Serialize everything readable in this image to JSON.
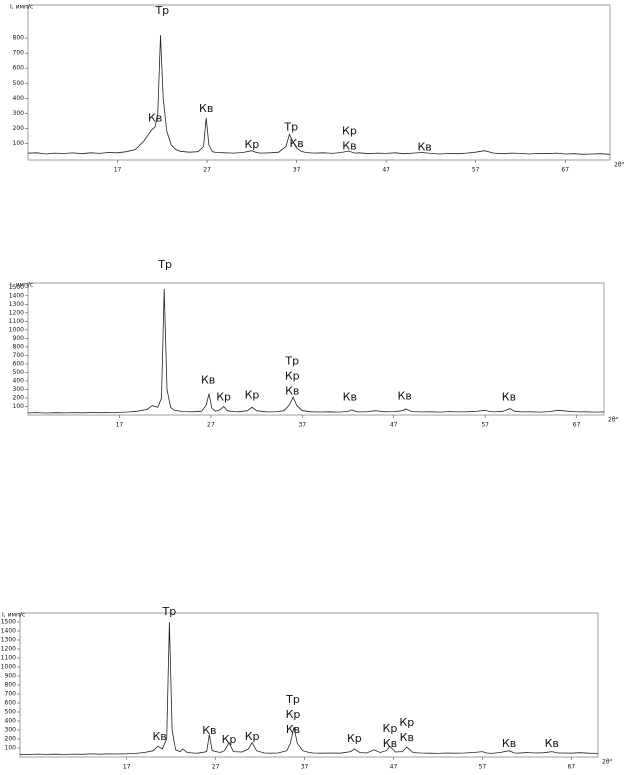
{
  "chart_data": [
    {
      "type": "line",
      "y_label": "I, имп/с",
      "x_label": "2θ°",
      "xlim": [
        7,
        72
      ],
      "ylim": [
        -10,
        1020
      ],
      "xticks": [
        17,
        27,
        37,
        47,
        57,
        67
      ],
      "yticks": [
        100,
        200,
        300,
        400,
        500,
        600,
        700,
        800
      ],
      "series": [
        {
          "color": "#222222",
          "x": [
            7,
            8,
            9,
            10,
            11,
            12,
            13,
            14,
            15,
            16,
            17,
            18,
            19,
            20,
            20.8,
            21.2,
            21.5,
            21.8,
            22.1,
            22.5,
            23,
            23.5,
            24,
            25,
            26,
            26.6,
            26.9,
            27.2,
            27.6,
            28,
            29,
            30,
            31,
            32,
            32.5,
            33,
            34,
            35,
            35.8,
            36.2,
            36.6,
            37,
            37.5,
            38,
            39,
            40,
            41,
            42,
            42.8,
            43.5,
            44,
            45,
            46,
            47,
            48,
            49,
            50,
            51,
            52,
            53,
            54,
            55,
            56,
            57,
            58,
            59,
            60,
            61,
            62,
            63,
            64,
            65,
            66,
            67,
            68,
            69,
            70,
            71,
            72
          ],
          "values": [
            35,
            38,
            30,
            36,
            33,
            37,
            32,
            38,
            34,
            40,
            38,
            45,
            60,
            120,
            190,
            210,
            300,
            820,
            400,
            180,
            90,
            60,
            48,
            42,
            45,
            80,
            270,
            90,
            45,
            40,
            38,
            36,
            40,
            52,
            40,
            36,
            38,
            42,
            80,
            160,
            110,
            70,
            48,
            40,
            36,
            38,
            34,
            40,
            50,
            36,
            38,
            32,
            36,
            34,
            38,
            32,
            36,
            40,
            34,
            30,
            34,
            32,
            36,
            42,
            52,
            36,
            32,
            36,
            34,
            30,
            34,
            32,
            36,
            30,
            32,
            28,
            30,
            32,
            28
          ]
        }
      ],
      "annotations": [
        {
          "x": 22,
          "y": 980,
          "labels": [
            "Тр"
          ]
        },
        {
          "x": 21.2,
          "y": 265,
          "labels": [
            "Кв"
          ]
        },
        {
          "x": 26.9,
          "y": 330,
          "labels": [
            "Кв"
          ]
        },
        {
          "x": 32,
          "y": 90,
          "labels": [
            "Кр"
          ]
        },
        {
          "x": 36.4,
          "y": 205,
          "labels": [
            "Тр"
          ]
        },
        {
          "x": 37,
          "y": 95,
          "labels": [
            "Кв"
          ]
        },
        {
          "x": 42.9,
          "y": 80,
          "labels": [
            "Кр",
            "Кв"
          ]
        },
        {
          "x": 51.3,
          "y": 72,
          "labels": [
            "Кв"
          ]
        }
      ]
    },
    {
      "type": "line",
      "y_label": "I, имп/с",
      "x_label": "2θ°",
      "xlim": [
        7,
        70
      ],
      "ylim": [
        0,
        1550
      ],
      "xticks": [
        17,
        27,
        37,
        47,
        57,
        67
      ],
      "yticks": [
        100,
        200,
        300,
        400,
        500,
        600,
        700,
        800,
        900,
        1000,
        1100,
        1200,
        1300,
        1400,
        1500
      ],
      "series": [
        {
          "color": "#222222",
          "x": [
            7,
            8,
            9,
            10,
            11,
            12,
            13,
            14,
            15,
            16,
            17,
            18,
            19,
            20,
            20.6,
            21.2,
            21.6,
            21.9,
            22.2,
            22.6,
            23,
            24,
            25,
            26,
            26.5,
            26.8,
            27.1,
            27.5,
            28,
            28.4,
            28.8,
            29.5,
            30,
            31,
            31.5,
            32,
            33,
            34,
            35,
            35.6,
            36,
            36.4,
            37,
            38,
            39,
            40,
            41,
            42,
            42.4,
            43,
            44,
            45,
            46,
            47,
            48,
            48.3,
            49,
            50,
            51,
            52,
            53,
            54,
            55,
            56,
            57,
            57.5,
            58,
            59,
            59.7,
            60.2,
            61,
            62,
            63,
            64,
            65,
            66,
            67,
            68,
            69,
            70
          ],
          "values": [
            25,
            28,
            24,
            27,
            25,
            28,
            26,
            29,
            27,
            30,
            30,
            35,
            45,
            65,
            110,
            90,
            200,
            1480,
            300,
            90,
            55,
            40,
            38,
            45,
            120,
            250,
            80,
            45,
            60,
            100,
            50,
            40,
            38,
            50,
            90,
            50,
            38,
            36,
            50,
            120,
            210,
            110,
            50,
            38,
            35,
            38,
            34,
            42,
            60,
            38,
            36,
            50,
            38,
            40,
            50,
            70,
            40,
            36,
            38,
            34,
            40,
            36,
            38,
            42,
            55,
            40,
            36,
            45,
            75,
            45,
            36,
            38,
            34,
            40,
            55,
            45,
            36,
            38,
            34,
            36
          ]
        }
      ],
      "annotations": [
        {
          "x": 22,
          "y": 1760,
          "labels": [
            "Тр"
          ]
        },
        {
          "x": 26.7,
          "y": 406,
          "labels": [
            "Кв"
          ]
        },
        {
          "x": 28.4,
          "y": 206,
          "labels": [
            "Кр"
          ]
        },
        {
          "x": 31.5,
          "y": 229,
          "labels": [
            "Кр"
          ]
        },
        {
          "x": 35.9,
          "y": 276,
          "labels": [
            "Тр",
            "Кр",
            "Кв"
          ]
        },
        {
          "x": 42.2,
          "y": 206,
          "labels": [
            "Кв"
          ]
        },
        {
          "x": 48.2,
          "y": 218,
          "labels": [
            "Кв"
          ]
        },
        {
          "x": 59.6,
          "y": 206,
          "labels": [
            "Кв"
          ]
        }
      ]
    },
    {
      "type": "line",
      "y_label": "I, имп/с",
      "x_label": "2θ°",
      "xlim": [
        5,
        70
      ],
      "ylim": [
        0,
        1600
      ],
      "xticks": [
        17,
        27,
        37,
        47,
        57,
        67
      ],
      "yticks": [
        100,
        200,
        300,
        400,
        500,
        600,
        700,
        800,
        900,
        1000,
        1100,
        1200,
        1300,
        1400,
        1500
      ],
      "series": [
        {
          "color": "#222222",
          "x": [
            5,
            6,
            7,
            8,
            9,
            10,
            11,
            12,
            13,
            14,
            15,
            16,
            17,
            18,
            19,
            20,
            20.5,
            21,
            21.5,
            21.8,
            22.1,
            22.5,
            23,
            23.3,
            23.8,
            24.5,
            25,
            26,
            26.3,
            26.6,
            27.5,
            28,
            28.5,
            29,
            30,
            30.7,
            31.1,
            31.6,
            32.5,
            33,
            34,
            35,
            35.4,
            35.8,
            36.2,
            36.8,
            37.5,
            38,
            39,
            40,
            41,
            42.2,
            42.6,
            43.2,
            44,
            44.8,
            45.5,
            46.2,
            46.6,
            47.2,
            48,
            48.5,
            49.2,
            50,
            51,
            52,
            53,
            54,
            55,
            56,
            57,
            57.5,
            58,
            59,
            60,
            60.6,
            61,
            62,
            63,
            64,
            64.8,
            65.5,
            66,
            67,
            68,
            69,
            70
          ],
          "values": [
            30,
            28,
            32,
            29,
            31,
            28,
            32,
            30,
            34,
            31,
            35,
            33,
            36,
            40,
            50,
            70,
            120,
            90,
            200,
            1500,
            300,
            80,
            60,
            90,
            50,
            45,
            42,
            60,
            250,
            70,
            50,
            70,
            160,
            60,
            55,
            90,
            160,
            70,
            45,
            42,
            45,
            70,
            150,
            330,
            150,
            70,
            50,
            45,
            42,
            45,
            42,
            60,
            90,
            50,
            45,
            80,
            50,
            70,
            120,
            55,
            60,
            110,
            50,
            44,
            42,
            40,
            44,
            42,
            45,
            50,
            60,
            45,
            40,
            50,
            70,
            45,
            42,
            50,
            45,
            48,
            60,
            45,
            44,
            42,
            48,
            42,
            40
          ]
        }
      ],
      "annotations": [
        {
          "x": 21.8,
          "y": 1611,
          "labels": [
            "Тр"
          ]
        },
        {
          "x": 20.7,
          "y": 222,
          "labels": [
            "Кв"
          ]
        },
        {
          "x": 26.3,
          "y": 289,
          "labels": [
            "Кв"
          ]
        },
        {
          "x": 28.5,
          "y": 189,
          "labels": [
            "Кр"
          ]
        },
        {
          "x": 31.1,
          "y": 222,
          "labels": [
            "Кр"
          ]
        },
        {
          "x": 35.7,
          "y": 300,
          "labels": [
            "Тр",
            "Кр",
            "Кв"
          ]
        },
        {
          "x": 42.6,
          "y": 200,
          "labels": [
            "Кр"
          ]
        },
        {
          "x": 46.6,
          "y": 144,
          "labels": [
            "Кр",
            "Кв"
          ]
        },
        {
          "x": 48.5,
          "y": 211,
          "labels": [
            "Кр",
            "Кв"
          ]
        },
        {
          "x": 60,
          "y": 144,
          "labels": [
            "Кв"
          ]
        },
        {
          "x": 64.8,
          "y": 144,
          "labels": [
            "Кв"
          ]
        }
      ]
    }
  ]
}
